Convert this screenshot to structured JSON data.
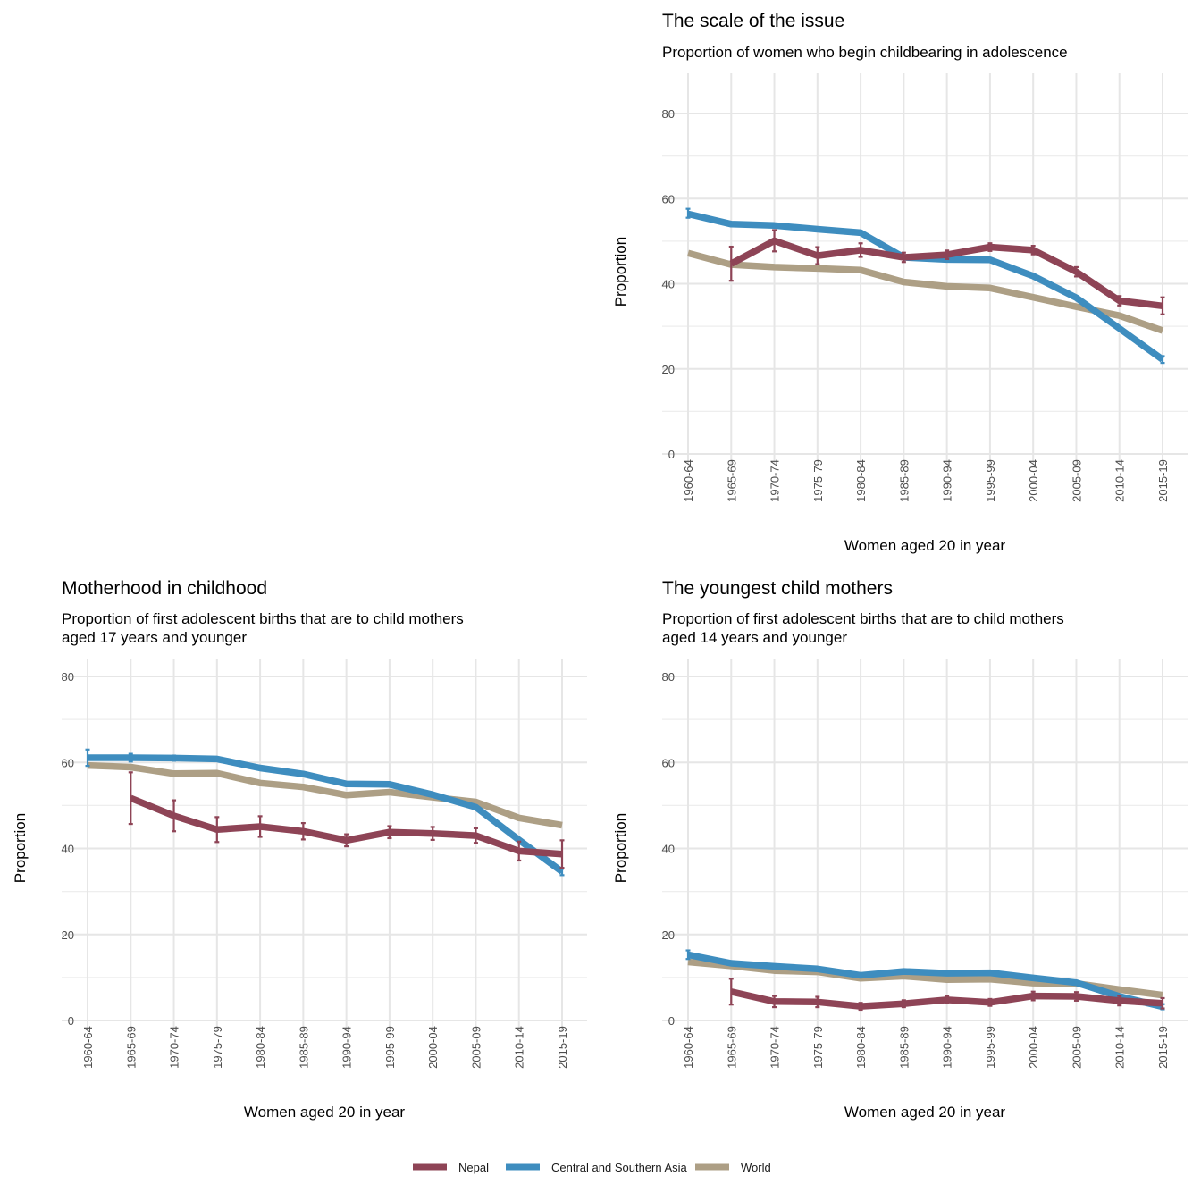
{
  "legend": [
    {
      "name": "Nepal",
      "color": "#8e4456"
    },
    {
      "name": "Central and Southern Asia",
      "color": "#3e8dbf"
    },
    {
      "name": "World",
      "color": "#ad9f85"
    }
  ],
  "chart_data": [
    {
      "id": "panel-scale",
      "type": "line",
      "title": "The scale of the issue",
      "subtitle": [
        "Proportion of women who begin childbearing in adolescence"
      ],
      "xlabel": "Women aged 20 in year",
      "ylabel": "Proportion",
      "ylim": [
        0,
        80
      ],
      "yticks": [
        0,
        20,
        40,
        60,
        80
      ],
      "categories": [
        "1960-64",
        "1965-69",
        "1970-74",
        "1975-79",
        "1980-84",
        "1985-89",
        "1990-94",
        "1995-99",
        "2000-04",
        "2005-09",
        "2010-14",
        "2015-19"
      ],
      "grid": true,
      "series": [
        {
          "name": "World",
          "color": "#ad9f85",
          "values": [
            47.2,
            44.5,
            43.9,
            43.6,
            43.2,
            40.4,
            39.4,
            39.0,
            36.8,
            34.6,
            32.5,
            29.0
          ]
        },
        {
          "name": "Central and Southern Asia",
          "color": "#3e8dbf",
          "values": [
            56.4,
            54.0,
            53.7,
            52.8,
            52.0,
            46.2,
            45.7,
            45.6,
            41.8,
            36.7,
            29.5,
            22.2
          ],
          "error": [
            [
              55.5,
              57.6
            ],
            null,
            null,
            null,
            null,
            null,
            null,
            null,
            null,
            null,
            null,
            [
              21.4,
              23.0
            ]
          ]
        },
        {
          "name": "Nepal",
          "color": "#8e4456",
          "values": [
            null,
            44.7,
            50.1,
            46.6,
            47.9,
            46.2,
            46.8,
            48.6,
            47.9,
            42.8,
            36.0,
            34.8
          ],
          "error": [
            null,
            [
              40.7,
              48.7
            ],
            [
              47.6,
              52.6
            ],
            [
              44.6,
              48.6
            ],
            [
              46.3,
              49.5
            ],
            [
              45.1,
              47.3
            ],
            [
              45.8,
              47.8
            ],
            [
              47.7,
              49.5
            ],
            [
              46.9,
              48.9
            ],
            [
              41.7,
              43.9
            ],
            [
              34.9,
              37.1
            ],
            [
              32.8,
              36.8
            ]
          ]
        }
      ]
    },
    {
      "id": "panel-motherhood",
      "type": "line",
      "title": "Motherhood in childhood",
      "subtitle": [
        "Proportion of first adolescent births that are to child mothers",
        "aged 17 years and younger"
      ],
      "xlabel": "Women aged 20 in year",
      "ylabel": "Proportion",
      "ylim": [
        0,
        80
      ],
      "yticks": [
        0,
        20,
        40,
        60,
        80
      ],
      "categories": [
        "1960-64",
        "1965-69",
        "1970-74",
        "1975-79",
        "1980-84",
        "1985-89",
        "1990-94",
        "1995-99",
        "2000-04",
        "2005-09",
        "2010-14",
        "2015-19"
      ],
      "grid": true,
      "series": [
        {
          "name": "World",
          "color": "#ad9f85",
          "values": [
            59.3,
            58.9,
            57.4,
            57.5,
            55.2,
            54.3,
            52.4,
            53.1,
            51.9,
            50.8,
            47.1,
            45.4
          ]
        },
        {
          "name": "Central and Southern Asia",
          "color": "#3e8dbf",
          "values": [
            61.1,
            61.1,
            61.0,
            60.8,
            58.7,
            57.3,
            55.0,
            54.9,
            52.5,
            49.6,
            42.0,
            34.6
          ],
          "error": [
            [
              59.2,
              63.0
            ],
            [
              60.2,
              62.0
            ],
            [
              60.4,
              61.6
            ],
            null,
            null,
            null,
            null,
            null,
            null,
            null,
            null,
            [
              33.8,
              35.4
            ]
          ]
        },
        {
          "name": "Nepal",
          "color": "#8e4456",
          "values": [
            null,
            51.7,
            47.6,
            44.4,
            45.1,
            44.0,
            41.9,
            43.8,
            43.5,
            43.0,
            39.4,
            38.7
          ],
          "error": [
            null,
            [
              45.7,
              57.7
            ],
            [
              44.0,
              51.2
            ],
            [
              41.5,
              47.3
            ],
            [
              42.7,
              47.5
            ],
            [
              42.1,
              45.9
            ],
            [
              40.5,
              43.3
            ],
            [
              42.4,
              45.2
            ],
            [
              42.0,
              45.0
            ],
            [
              41.3,
              44.7
            ],
            [
              37.2,
              41.6
            ],
            [
              35.5,
              41.9
            ]
          ]
        }
      ]
    },
    {
      "id": "panel-youngest",
      "type": "line",
      "title": "The youngest child mothers",
      "subtitle": [
        "Proportion of first adolescent births that are to child mothers",
        "aged 14 years and younger"
      ],
      "xlabel": "Women aged 20 in year",
      "ylabel": "Proportion",
      "ylim": [
        0,
        80
      ],
      "yticks": [
        0,
        20,
        40,
        60,
        80
      ],
      "categories": [
        "1960-64",
        "1965-69",
        "1970-74",
        "1975-79",
        "1980-84",
        "1985-89",
        "1990-94",
        "1995-99",
        "2000-04",
        "2005-09",
        "2010-14",
        "2015-19"
      ],
      "grid": true,
      "series": [
        {
          "name": "World",
          "color": "#ad9f85",
          "values": [
            13.6,
            12.7,
            11.6,
            11.3,
            9.8,
            10.3,
            9.5,
            9.6,
            8.7,
            8.6,
            7.2,
            5.9
          ]
        },
        {
          "name": "Central and Southern Asia",
          "color": "#3e8dbf",
          "values": [
            15.3,
            13.3,
            12.6,
            12.0,
            10.5,
            11.4,
            11.0,
            11.1,
            9.9,
            8.8,
            5.6,
            3.2
          ],
          "error": [
            [
              14.3,
              16.3
            ],
            null,
            null,
            null,
            null,
            null,
            null,
            null,
            null,
            null,
            null,
            [
              2.6,
              3.8
            ]
          ]
        },
        {
          "name": "Nepal",
          "color": "#8e4456",
          "values": [
            null,
            6.7,
            4.4,
            4.3,
            3.3,
            3.9,
            4.8,
            4.2,
            5.7,
            5.6,
            4.6,
            4.0
          ],
          "error": [
            null,
            [
              3.7,
              9.7
            ],
            [
              3.1,
              5.7
            ],
            [
              3.1,
              5.5
            ],
            [
              2.5,
              4.1
            ],
            [
              3.1,
              4.7
            ],
            [
              4.0,
              5.6
            ],
            [
              3.4,
              5.0
            ],
            [
              4.7,
              6.7
            ],
            [
              4.6,
              6.6
            ],
            [
              3.5,
              5.7
            ],
            [
              2.8,
              5.2
            ]
          ]
        }
      ]
    }
  ]
}
